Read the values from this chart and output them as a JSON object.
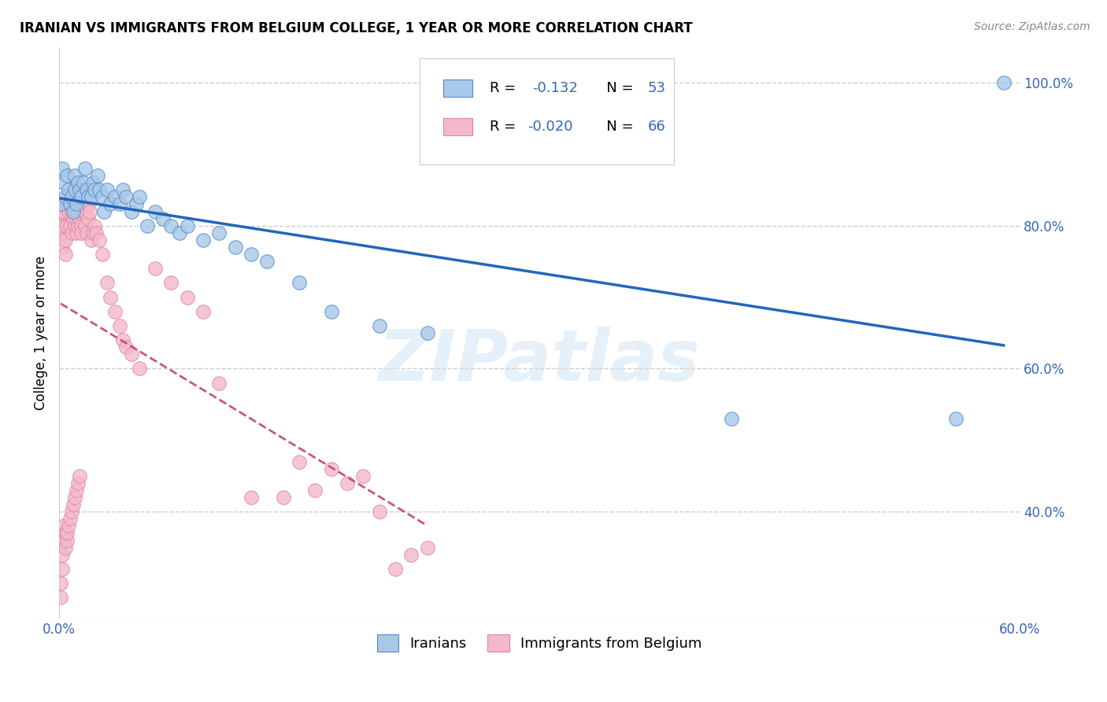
{
  "title": "IRANIAN VS IMMIGRANTS FROM BELGIUM COLLEGE, 1 YEAR OR MORE CORRELATION CHART",
  "source": "Source: ZipAtlas.com",
  "ylabel": "College, 1 year or more",
  "xlim": [
    0.0,
    0.6
  ],
  "ylim": [
    0.25,
    1.05
  ],
  "y_ticks_right": [
    0.4,
    0.6,
    0.8,
    1.0
  ],
  "y_tick_labels_right": [
    "40.0%",
    "60.0%",
    "80.0%",
    "100.0%"
  ],
  "legend_r_blue": "-0.132",
  "legend_n_blue": "53",
  "legend_r_pink": "-0.020",
  "legend_n_pink": "66",
  "legend_label_blue": "Iranians",
  "legend_label_pink": "Immigrants from Belgium",
  "blue_color": "#a8c8e8",
  "pink_color": "#f4b8cc",
  "blue_edge_color": "#5588cc",
  "pink_edge_color": "#dd8899",
  "blue_line_color": "#2266bb",
  "pink_line_color": "#cc5577",
  "watermark": "ZIPatlas",
  "blue_x": [
    0.001,
    0.002,
    0.003,
    0.004,
    0.005,
    0.006,
    0.007,
    0.008,
    0.009,
    0.01,
    0.01,
    0.011,
    0.012,
    0.013,
    0.014,
    0.015,
    0.016,
    0.017,
    0.018,
    0.02,
    0.021,
    0.022,
    0.024,
    0.025,
    0.027,
    0.028,
    0.03,
    0.032,
    0.035,
    0.038,
    0.04,
    0.042,
    0.045,
    0.048,
    0.05,
    0.055,
    0.06,
    0.065,
    0.07,
    0.075,
    0.08,
    0.09,
    0.1,
    0.11,
    0.12,
    0.13,
    0.15,
    0.17,
    0.2,
    0.23,
    0.42,
    0.56,
    0.59
  ],
  "blue_y": [
    0.83,
    0.88,
    0.86,
    0.84,
    0.87,
    0.85,
    0.83,
    0.84,
    0.82,
    0.85,
    0.87,
    0.83,
    0.86,
    0.85,
    0.84,
    0.86,
    0.88,
    0.85,
    0.84,
    0.84,
    0.86,
    0.85,
    0.87,
    0.85,
    0.84,
    0.82,
    0.85,
    0.83,
    0.84,
    0.83,
    0.85,
    0.84,
    0.82,
    0.83,
    0.84,
    0.8,
    0.82,
    0.81,
    0.8,
    0.79,
    0.8,
    0.78,
    0.79,
    0.77,
    0.76,
    0.75,
    0.72,
    0.68,
    0.66,
    0.65,
    0.53,
    0.53,
    1.0
  ],
  "pink_x": [
    0.001,
    0.001,
    0.002,
    0.002,
    0.003,
    0.003,
    0.004,
    0.004,
    0.005,
    0.005,
    0.006,
    0.006,
    0.007,
    0.007,
    0.008,
    0.008,
    0.009,
    0.009,
    0.01,
    0.01,
    0.011,
    0.011,
    0.012,
    0.012,
    0.013,
    0.013,
    0.014,
    0.014,
    0.015,
    0.015,
    0.016,
    0.016,
    0.017,
    0.018,
    0.018,
    0.019,
    0.02,
    0.021,
    0.022,
    0.023,
    0.025,
    0.027,
    0.03,
    0.032,
    0.035,
    0.038,
    0.04,
    0.042,
    0.045,
    0.05,
    0.06,
    0.07,
    0.08,
    0.09,
    0.1,
    0.12,
    0.14,
    0.16,
    0.18,
    0.2,
    0.21,
    0.22,
    0.23,
    0.15,
    0.17,
    0.19
  ],
  "pink_y": [
    0.82,
    0.8,
    0.79,
    0.77,
    0.8,
    0.82,
    0.78,
    0.76,
    0.8,
    0.83,
    0.82,
    0.84,
    0.8,
    0.83,
    0.79,
    0.82,
    0.81,
    0.83,
    0.8,
    0.82,
    0.79,
    0.81,
    0.8,
    0.82,
    0.84,
    0.81,
    0.8,
    0.79,
    0.82,
    0.83,
    0.8,
    0.82,
    0.79,
    0.81,
    0.83,
    0.82,
    0.78,
    0.79,
    0.8,
    0.79,
    0.78,
    0.76,
    0.72,
    0.7,
    0.68,
    0.66,
    0.64,
    0.63,
    0.62,
    0.6,
    0.74,
    0.72,
    0.7,
    0.68,
    0.58,
    0.42,
    0.42,
    0.43,
    0.44,
    0.4,
    0.32,
    0.34,
    0.35,
    0.47,
    0.46,
    0.45
  ],
  "pink_low_x": [
    0.001,
    0.001,
    0.002,
    0.002,
    0.003,
    0.003,
    0.004,
    0.004,
    0.005,
    0.005,
    0.006,
    0.007,
    0.008,
    0.009,
    0.01,
    0.011,
    0.012,
    0.013
  ],
  "pink_low_y": [
    0.28,
    0.3,
    0.32,
    0.34,
    0.36,
    0.38,
    0.37,
    0.35,
    0.36,
    0.37,
    0.38,
    0.39,
    0.4,
    0.41,
    0.42,
    0.43,
    0.44,
    0.45
  ]
}
